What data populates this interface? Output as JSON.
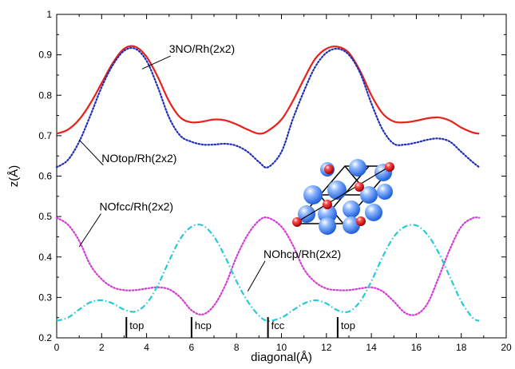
{
  "chart_data": {
    "type": "line",
    "xlabel": "diagonal(Å)",
    "ylabel": "z(Å)",
    "xlim": [
      0,
      20
    ],
    "ylim": [
      0.2,
      1.0
    ],
    "xticks": [
      "0",
      "2",
      "4",
      "6",
      "8",
      "10",
      "12",
      "14",
      "16",
      "18",
      "20"
    ],
    "yticks": [
      "0.2",
      "0.3",
      "0.4",
      "0.5",
      "0.6",
      "0.7",
      "0.8",
      "0.9",
      "1"
    ],
    "grid": false,
    "legend": "none",
    "series": [
      {
        "name": "3NO/Rh(2x2)",
        "style": "solid",
        "color": "#e8211b",
        "x": [
          0,
          0.5,
          1,
          1.5,
          2,
          2.5,
          3,
          3.5,
          4,
          4.5,
          5,
          5.5,
          6,
          6.5,
          7,
          7.5,
          8,
          8.5,
          9,
          9.4,
          10,
          10.5,
          11,
          11.5,
          12,
          12.5,
          13,
          13.5,
          14,
          14.5,
          15,
          15.5,
          16,
          16.5,
          17,
          17.5,
          18,
          18.5,
          18.8
        ],
        "y": [
          0.705,
          0.715,
          0.74,
          0.78,
          0.83,
          0.88,
          0.915,
          0.92,
          0.895,
          0.845,
          0.785,
          0.745,
          0.733,
          0.735,
          0.74,
          0.738,
          0.728,
          0.715,
          0.705,
          0.712,
          0.74,
          0.785,
          0.84,
          0.89,
          0.915,
          0.92,
          0.905,
          0.86,
          0.8,
          0.755,
          0.735,
          0.733,
          0.737,
          0.743,
          0.745,
          0.737,
          0.72,
          0.708,
          0.705
        ]
      },
      {
        "name": "NOtop/Rh(2x2)",
        "style": "dotted",
        "color": "#1f2fb8",
        "x": [
          0,
          0.5,
          1,
          1.5,
          2,
          2.5,
          3,
          3.5,
          4,
          4.5,
          5,
          5.5,
          6,
          6.5,
          7,
          7.5,
          8,
          8.5,
          9,
          9.4,
          10,
          10.5,
          11,
          11.5,
          12,
          12.5,
          13,
          13.5,
          14,
          14.5,
          15,
          15.5,
          16,
          16.5,
          17,
          17.5,
          18,
          18.5,
          18.8
        ],
        "y": [
          0.622,
          0.64,
          0.685,
          0.75,
          0.82,
          0.875,
          0.91,
          0.915,
          0.885,
          0.82,
          0.745,
          0.7,
          0.685,
          0.678,
          0.678,
          0.68,
          0.675,
          0.66,
          0.635,
          0.622,
          0.66,
          0.74,
          0.81,
          0.87,
          0.905,
          0.915,
          0.9,
          0.855,
          0.78,
          0.715,
          0.68,
          0.678,
          0.683,
          0.69,
          0.693,
          0.685,
          0.66,
          0.635,
          0.622
        ]
      },
      {
        "name": "NOfcc/Rh(2x2)",
        "style": "dotted",
        "color": "#d43ad8",
        "x": [
          0,
          0.5,
          1,
          1.5,
          2,
          2.5,
          3,
          3.5,
          4,
          4.5,
          5,
          5.5,
          6,
          6.5,
          7,
          7.5,
          8,
          8.5,
          9,
          9.4,
          10,
          10.5,
          11,
          11.5,
          12,
          12.5,
          13,
          13.5,
          14,
          14.5,
          15,
          15.5,
          16,
          16.5,
          17,
          17.5,
          18,
          18.5,
          18.8
        ],
        "y": [
          0.497,
          0.48,
          0.44,
          0.38,
          0.345,
          0.325,
          0.318,
          0.318,
          0.322,
          0.325,
          0.32,
          0.3,
          0.268,
          0.258,
          0.28,
          0.33,
          0.4,
          0.455,
          0.49,
          0.497,
          0.475,
          0.43,
          0.37,
          0.338,
          0.322,
          0.318,
          0.318,
          0.322,
          0.325,
          0.315,
          0.29,
          0.262,
          0.258,
          0.285,
          0.35,
          0.42,
          0.475,
          0.496,
          0.497
        ]
      },
      {
        "name": "NOhcp/Rh(2x2)",
        "style": "dashdot",
        "color": "#26c9d9",
        "x": [
          0,
          0.5,
          1,
          1.5,
          2,
          2.5,
          3,
          3.5,
          4,
          4.5,
          5,
          5.5,
          6,
          6.5,
          7,
          7.5,
          8,
          8.5,
          9,
          9.4,
          10,
          10.5,
          11,
          11.5,
          12,
          12.5,
          13,
          13.5,
          14,
          14.5,
          15,
          15.5,
          16,
          16.5,
          17,
          17.5,
          18,
          18.5,
          18.8
        ],
        "y": [
          0.242,
          0.25,
          0.27,
          0.288,
          0.293,
          0.285,
          0.27,
          0.265,
          0.285,
          0.33,
          0.39,
          0.445,
          0.475,
          0.478,
          0.45,
          0.4,
          0.34,
          0.29,
          0.255,
          0.242,
          0.25,
          0.268,
          0.285,
          0.293,
          0.285,
          0.268,
          0.265,
          0.29,
          0.34,
          0.4,
          0.45,
          0.475,
          0.478,
          0.455,
          0.41,
          0.35,
          0.29,
          0.25,
          0.242
        ]
      }
    ],
    "annotations": [
      {
        "text": "3NO/Rh(2x2)",
        "x": 5.0,
        "y": 0.905,
        "point_x": 3.8,
        "point_y": 0.865
      },
      {
        "text": "NOtop/Rh(2x2)",
        "x": 2.0,
        "y": 0.635,
        "point_x": 1.0,
        "point_y": 0.69
      },
      {
        "text": "NOfcc/Rh(2x2)",
        "x": 1.9,
        "y": 0.515,
        "point_x": 1.0,
        "point_y": 0.425
      },
      {
        "text": "NOhcp/Rh(2x2)",
        "x": 9.2,
        "y": 0.398,
        "point_x": 8.5,
        "point_y": 0.315
      }
    ],
    "site_markers": [
      {
        "text": "top",
        "x": 3.1
      },
      {
        "text": "hcp",
        "x": 6.0
      },
      {
        "text": "fcc",
        "x": 9.4
      },
      {
        "text": "top",
        "x": 12.5
      }
    ]
  }
}
